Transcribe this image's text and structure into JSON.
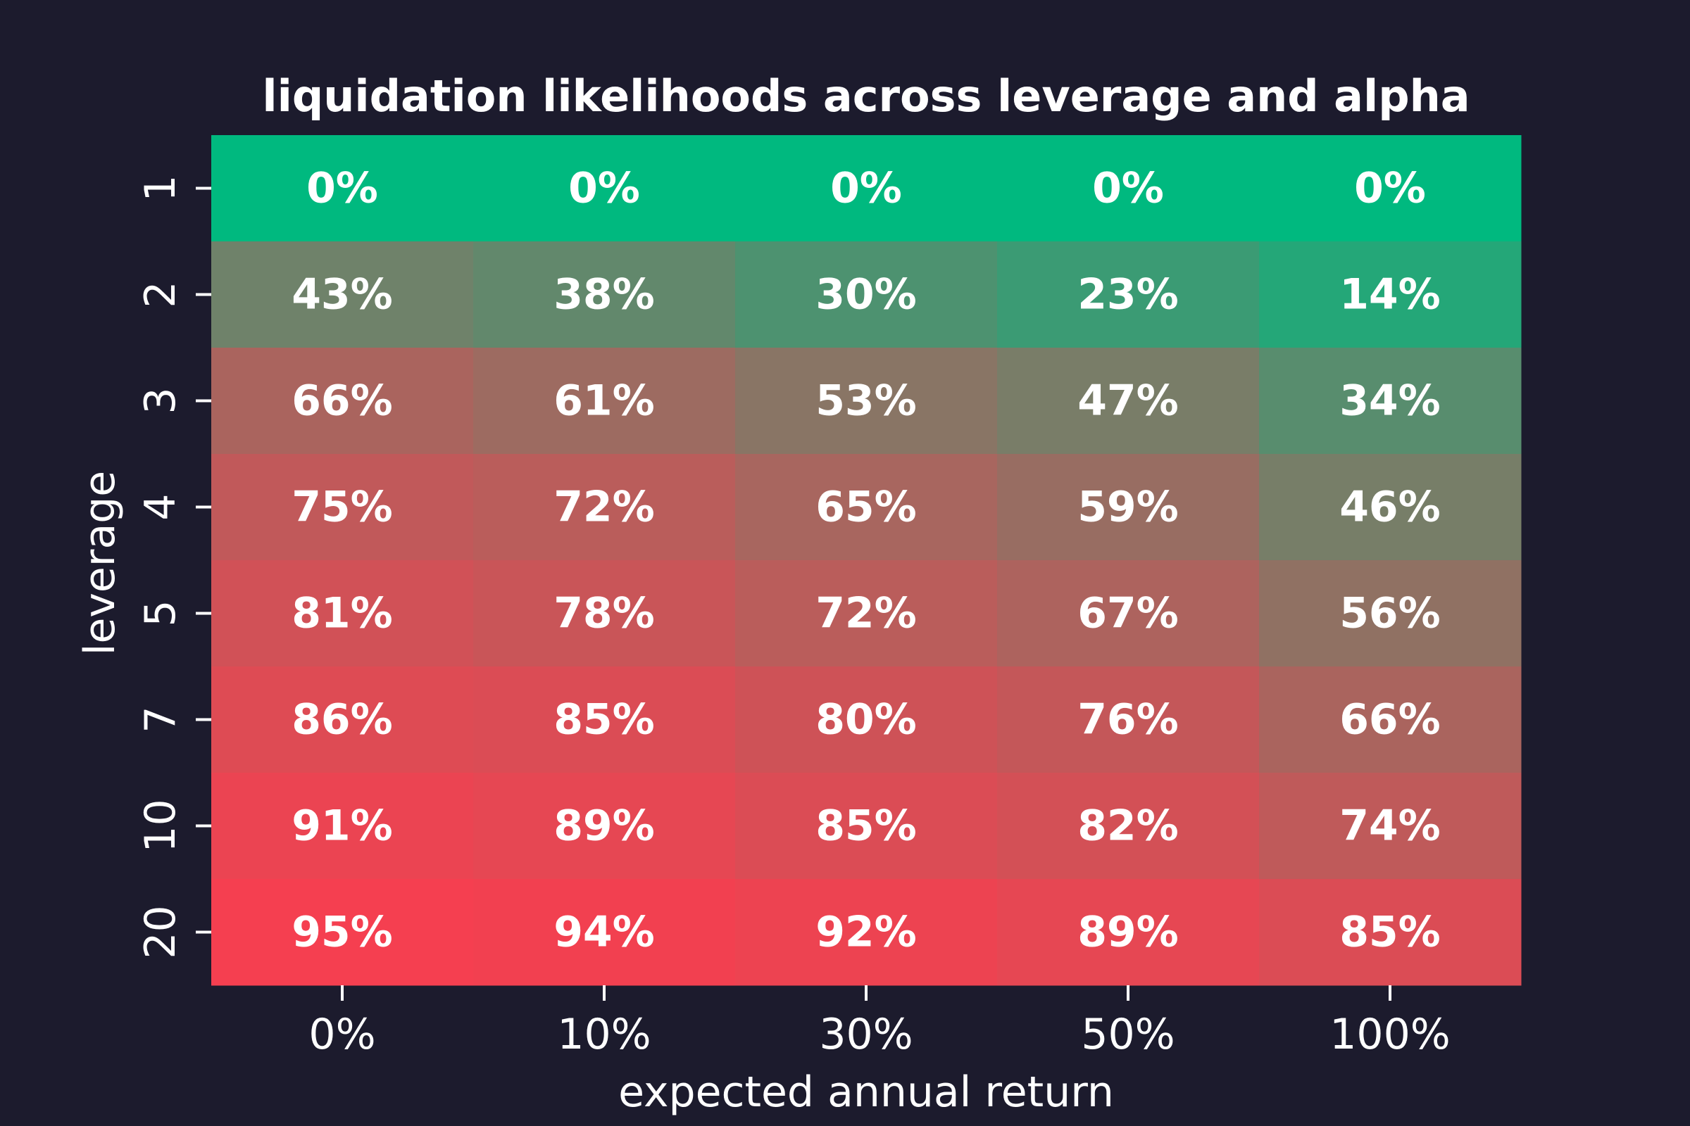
{
  "chart_data": {
    "type": "heatmap",
    "title": "liquidation likelihoods across leverage and alpha",
    "xlabel": "expected annual return",
    "ylabel": "leverage",
    "x_categories": [
      "0%",
      "10%",
      "30%",
      "50%",
      "100%"
    ],
    "y_categories": [
      "1",
      "2",
      "3",
      "4",
      "5",
      "7",
      "10",
      "20"
    ],
    "values": [
      [
        0,
        0,
        0,
        0,
        0
      ],
      [
        43,
        38,
        30,
        23,
        14
      ],
      [
        66,
        61,
        53,
        47,
        34
      ],
      [
        75,
        72,
        65,
        59,
        46
      ],
      [
        81,
        78,
        72,
        67,
        56
      ],
      [
        86,
        85,
        80,
        76,
        66
      ],
      [
        91,
        89,
        85,
        82,
        74
      ],
      [
        95,
        94,
        92,
        89,
        85
      ]
    ],
    "value_format": "{v}%",
    "color_scale": {
      "min": 0,
      "max": 95,
      "low_color": "#00b97f",
      "high_color": "#f53f50"
    },
    "grid": false,
    "legend": "none"
  },
  "colors": {
    "background": "#1c1b2d",
    "text": "#ffffff"
  }
}
